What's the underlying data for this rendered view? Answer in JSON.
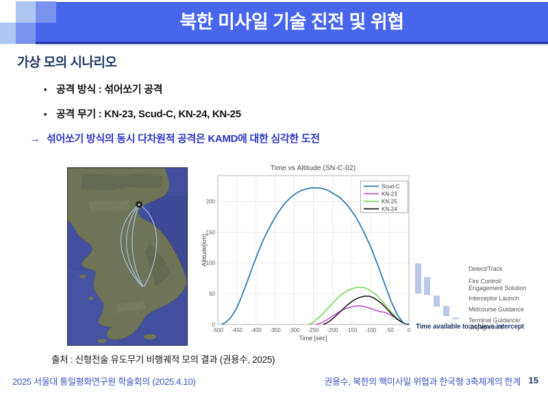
{
  "slide": {
    "title": "북한 미사일 기술 진전 및 위협",
    "section_heading": "가상 모의 시나리오",
    "bullets": [
      {
        "marker": "•",
        "text": "공격 방식 : 섞어쏘기 공격"
      },
      {
        "marker": "•",
        "text": "공격 무기 : KN-23, Scud-C, KN-24, KN-25"
      },
      {
        "marker": "→",
        "text": "섞어쏘기 방식의 동시 다차원적 공격은 KAMD에 대한 심각한 도전"
      }
    ],
    "source_line": "출처 : 신형전술 유도무기 비행궤적 모의 결과 (권용수, 2025)",
    "footer_left": "2025 서울대 통일평화연구원 학술회의 (2025.4.10)",
    "footer_right": "권용수, 북한의 핵미사일 위협과 한국형 3축체계의 한계",
    "page_number": "15"
  },
  "colors": {
    "title_bar": "#4766ec",
    "heading_navy": "#1f3864",
    "arrow_blue": "#2b36c1",
    "footer_blue": "#3c55c0",
    "map_sea": "#424f9e",
    "map_land": "#6f7457",
    "trajectory": "#a9c7e8"
  },
  "chart_data": [
    {
      "type": "line",
      "title": "Time vs Altitude (SN-C-02)",
      "xlabel": "Time [sec]",
      "ylabel": "Altitude[km]",
      "xlim": [
        -500,
        0
      ],
      "ylim": [
        0,
        242
      ],
      "xticks": [
        -500,
        -450,
        -400,
        -350,
        -300,
        -250,
        -200,
        -150,
        -100,
        -50,
        0
      ],
      "yticks": [
        0,
        50,
        100,
        150,
        200
      ],
      "grid": true,
      "legend_position": "top-right",
      "series": [
        {
          "name": "Scud-C",
          "color": "#2d7ab8",
          "points": [
            [
              -490,
              0
            ],
            [
              -478,
              4
            ],
            [
              -465,
              12
            ],
            [
              -452,
              25
            ],
            [
              -438,
              45
            ],
            [
              -424,
              68
            ],
            [
              -410,
              92
            ],
            [
              -396,
              115
            ],
            [
              -382,
              136
            ],
            [
              -368,
              154
            ],
            [
              -354,
              170
            ],
            [
              -340,
              184
            ],
            [
              -326,
              196
            ],
            [
              -312,
              205
            ],
            [
              -298,
              212
            ],
            [
              -284,
              217
            ],
            [
              -270,
              220
            ],
            [
              -255,
              222
            ],
            [
              -240,
              222
            ],
            [
              -226,
              221
            ],
            [
              -212,
              218
            ],
            [
              -198,
              213
            ],
            [
              -180,
              206
            ],
            [
              -160,
              193
            ],
            [
              -140,
              176
            ],
            [
              -120,
              153
            ],
            [
              -100,
              126
            ],
            [
              -80,
              94
            ],
            [
              -60,
              60
            ],
            [
              -45,
              35
            ],
            [
              -30,
              15
            ],
            [
              -15,
              3
            ],
            [
              -5,
              0
            ]
          ]
        },
        {
          "name": "KN-23",
          "color": "#c74ecb",
          "points": [
            [
              -244,
              0
            ],
            [
              -236,
              1
            ],
            [
              -228,
              3
            ],
            [
              -218,
              6
            ],
            [
              -208,
              10
            ],
            [
              -196,
              15
            ],
            [
              -184,
              20
            ],
            [
              -172,
              24
            ],
            [
              -160,
              27
            ],
            [
              -148,
              29
            ],
            [
              -136,
              30
            ],
            [
              -124,
              30
            ],
            [
              -112,
              28
            ],
            [
              -100,
              26
            ],
            [
              -90,
              24
            ],
            [
              -82,
              22
            ],
            [
              -74,
              20.5
            ],
            [
              -66,
              20
            ],
            [
              -58,
              18.5
            ],
            [
              -50,
              16
            ],
            [
              -42,
              13
            ],
            [
              -34,
              10
            ],
            [
              -26,
              7
            ],
            [
              -16,
              3
            ],
            [
              -8,
              1
            ],
            [
              0,
              0
            ]
          ]
        },
        {
          "name": "KN-25",
          "color": "#7bd65c",
          "points": [
            [
              -263,
              0
            ],
            [
              -254,
              2
            ],
            [
              -245,
              6
            ],
            [
              -236,
              11
            ],
            [
              -226,
              17
            ],
            [
              -214,
              25
            ],
            [
              -202,
              33
            ],
            [
              -190,
              41
            ],
            [
              -178,
              48
            ],
            [
              -166,
              53
            ],
            [
              -154,
              57
            ],
            [
              -142,
              59.5
            ],
            [
              -130,
              60.5
            ],
            [
              -118,
              60
            ],
            [
              -106,
              57
            ],
            [
              -94,
              52
            ],
            [
              -82,
              46
            ],
            [
              -70,
              38
            ],
            [
              -58,
              29
            ],
            [
              -46,
              20
            ],
            [
              -34,
              12
            ],
            [
              -22,
              5
            ],
            [
              -10,
              1
            ],
            [
              0,
              0
            ]
          ]
        },
        {
          "name": "KN-24",
          "color": "#1a1a1a",
          "points": [
            [
              -224,
              0
            ],
            [
              -216,
              2
            ],
            [
              -208,
              5
            ],
            [
              -198,
              10
            ],
            [
              -188,
              16
            ],
            [
              -176,
              23
            ],
            [
              -164,
              30
            ],
            [
              -152,
              36
            ],
            [
              -140,
              41
            ],
            [
              -128,
              44
            ],
            [
              -116,
              46
            ],
            [
              -104,
              46
            ],
            [
              -92,
              43
            ],
            [
              -80,
              38
            ],
            [
              -68,
              32
            ],
            [
              -56,
              24
            ],
            [
              -44,
              16
            ],
            [
              -32,
              9
            ],
            [
              -20,
              4
            ],
            [
              -10,
              1
            ],
            [
              0,
              0
            ]
          ]
        }
      ]
    },
    {
      "type": "waterfall",
      "caption": "Time available to achieve intercept",
      "bar_color": "#b9c8e4",
      "phases": [
        {
          "label": "Detect/Track",
          "bar": [
            6,
            8,
            9,
            44
          ]
        },
        {
          "label": "Fire Control/\nEngagement Solution",
          "bar": [
            19,
            28,
            9,
            26
          ]
        },
        {
          "label": "Interceptor Launch",
          "bar": [
            33,
            55,
            9,
            16
          ]
        },
        {
          "label": "Midcourse Guidance",
          "bar": [
            47,
            70,
            9,
            15
          ]
        },
        {
          "label": "Terminal Guidance/\nEngagement",
          "bar": [
            61,
            87,
            9,
            2.5
          ]
        }
      ]
    }
  ]
}
